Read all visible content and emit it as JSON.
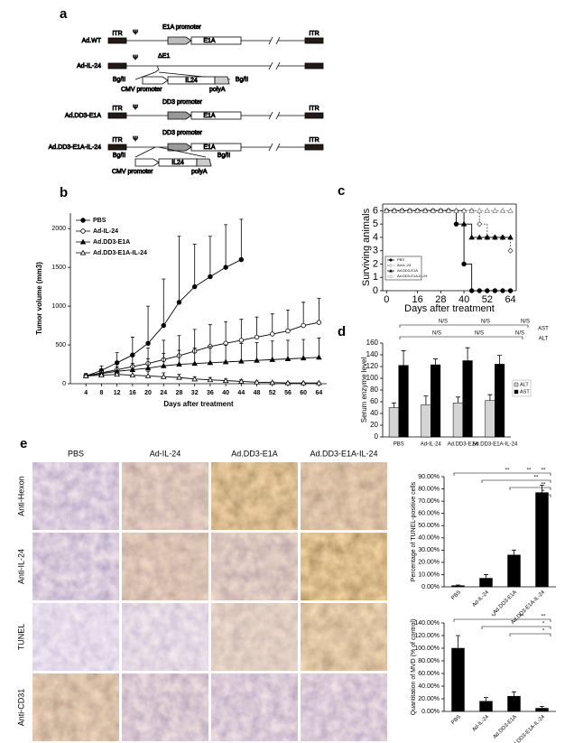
{
  "figure": {
    "labels": [
      "a",
      "b",
      "c",
      "d",
      "e"
    ]
  },
  "diagram": {
    "constructs": [
      "Ad.WT",
      "Ad-IL-24",
      "Ad.DD3-E1A",
      "Ad.DD3-E1A-IL-24"
    ],
    "parts": {
      "itr": "ITR",
      "psi": "Ψ",
      "e1a_promoter": "E1A promoter",
      "e1a": "E1A",
      "delta_e1": "ΔE1",
      "bgl": "Bg/II",
      "il24": "IL24",
      "cmv": "CMV promoter",
      "polya": "polyA",
      "dd3": "DD3 promoter"
    }
  },
  "chart_data": [
    {
      "type": "line",
      "xlabel": "Days after treatment",
      "ylabel": "Tumor volume (mm3)",
      "x": [
        4,
        8,
        12,
        16,
        20,
        24,
        28,
        32,
        36,
        40,
        44,
        48,
        52,
        56,
        60,
        64
      ],
      "xlim": [
        0,
        66
      ],
      "xticks": [
        4,
        8,
        12,
        16,
        20,
        24,
        28,
        32,
        36,
        40,
        44,
        48,
        52,
        56,
        60,
        64
      ],
      "ylim": [
        0,
        2200
      ],
      "yticks": [
        0,
        500,
        1000,
        1500,
        2000
      ],
      "legend": "upper left",
      "series": [
        {
          "name": "PBS",
          "color": "#000000",
          "marker": "circle",
          "values": [
            100,
            170,
            270,
            370,
            520,
            750,
            1050,
            1250,
            1380,
            1500,
            1600,
            null,
            null,
            null,
            null,
            null
          ],
          "errors": [
            20,
            60,
            130,
            230,
            480,
            600,
            850,
            550,
            520,
            550,
            520,
            null,
            null,
            null,
            null,
            null
          ]
        },
        {
          "name": "Ad-IL-24",
          "color": "#000000",
          "marker": "circle-open",
          "values": [
            100,
            140,
            180,
            220,
            260,
            310,
            360,
            420,
            480,
            520,
            560,
            600,
            640,
            680,
            750,
            790
          ],
          "errors": [
            30,
            50,
            100,
            150,
            200,
            250,
            260,
            280,
            280,
            280,
            270,
            260,
            260,
            270,
            300,
            310
          ]
        },
        {
          "name": "Ad.DD3-E1A",
          "color": "#000000",
          "marker": "triangle",
          "values": [
            100,
            130,
            160,
            180,
            200,
            230,
            250,
            260,
            270,
            280,
            290,
            300,
            310,
            320,
            330,
            340
          ],
          "errors": [
            20,
            40,
            60,
            80,
            120,
            160,
            180,
            200,
            210,
            220,
            230,
            230,
            240,
            240,
            240,
            250
          ]
        },
        {
          "name": "Ad.DD3-E1A-IL-24",
          "color": "#000000",
          "marker": "triangle-open",
          "values": [
            100,
            110,
            120,
            110,
            100,
            90,
            80,
            60,
            50,
            40,
            30,
            20,
            15,
            10,
            10,
            10
          ],
          "errors": [
            20,
            30,
            40,
            50,
            60,
            50,
            40,
            30,
            30,
            20,
            20,
            15,
            10,
            10,
            10,
            10
          ]
        }
      ]
    },
    {
      "type": "line",
      "drawstyle": "steps",
      "xlabel": "Days after treatment",
      "ylabel": "Surviving animals",
      "x": [
        0,
        4,
        8,
        12,
        16,
        20,
        24,
        28,
        32,
        36,
        40,
        44,
        48,
        52,
        56,
        60,
        64
      ],
      "xlim": [
        -2,
        67
      ],
      "xticks": [
        0,
        16,
        28,
        40,
        52,
        64
      ],
      "ylim": [
        0,
        6.5
      ],
      "yticks": [
        0,
        1,
        2,
        3,
        4,
        5,
        6
      ],
      "legend": "lower left",
      "series": [
        {
          "name": "PBS",
          "color": "#000000",
          "marker": "circle",
          "values": [
            6,
            6,
            6,
            6,
            6,
            6,
            6,
            6,
            6,
            5,
            2,
            0,
            0,
            0,
            0,
            0,
            0
          ]
        },
        {
          "name": "Ad-IL-24",
          "color": "#555555",
          "marker": "diamond-open",
          "dash": true,
          "values": [
            6,
            6,
            6,
            6,
            6,
            6,
            6,
            6,
            6,
            6,
            6,
            6,
            5,
            4,
            4,
            4,
            3
          ]
        },
        {
          "name": "Ad.DD3-E1A",
          "color": "#000000",
          "marker": "triangle",
          "values": [
            6,
            6,
            6,
            6,
            6,
            6,
            6,
            6,
            6,
            6,
            5,
            4,
            4,
            4,
            4,
            4,
            4
          ]
        },
        {
          "name": "Ad.DD3-E1A-IL-24",
          "color": "#888888",
          "marker": "triangle-open",
          "dash": true,
          "values": [
            6,
            6,
            6,
            6,
            6,
            6,
            6,
            6,
            6,
            6,
            6,
            6,
            6,
            6,
            6,
            6,
            6
          ]
        }
      ]
    },
    {
      "type": "bar",
      "ylabel": "Serum enzyme level",
      "categories": [
        "PBS",
        "Ad-IL-24",
        "Ad.DD3-E1A",
        "Ad.DD3-E1A-IL-24"
      ],
      "ylim": [
        0,
        160
      ],
      "yticks": [
        0,
        20,
        40,
        60,
        80,
        100,
        120,
        140,
        160
      ],
      "legend": "center right",
      "series": [
        {
          "name": "ALT",
          "color": "#d4d4d4",
          "values": [
            50,
            55,
            58,
            62
          ],
          "errors": [
            8,
            15,
            10,
            10
          ]
        },
        {
          "name": "AST",
          "color": "#000000",
          "values": [
            122,
            123,
            130,
            124
          ],
          "errors": [
            25,
            10,
            22,
            15
          ]
        }
      ],
      "annotations": [
        "N/S",
        "N/S",
        "N/S",
        "N/S",
        "N/S",
        "N/S",
        "AST",
        "ALT"
      ]
    },
    {
      "type": "bar",
      "ylabel": "Percentage of TUNEL-positive cells",
      "categories": [
        "PBS",
        "Ad-IL-24",
        "Ad.DD3-E1A",
        "Ad.DD3-E1A-IL-24"
      ],
      "values": [
        1,
        7,
        26,
        77
      ],
      "errors": [
        0.5,
        3,
        4,
        6
      ],
      "color": "#000000",
      "ylim": [
        0,
        90
      ],
      "yticks": [
        {
          "value": 0,
          "label": "0.00%"
        },
        {
          "value": 10,
          "label": "10.00%"
        },
        {
          "value": 20,
          "label": "20.00%"
        },
        {
          "value": 30,
          "label": "30.00%"
        },
        {
          "value": 40,
          "label": "40.00%"
        },
        {
          "value": 50,
          "label": "50.00%"
        },
        {
          "value": 60,
          "label": "60.00%"
        },
        {
          "value": 70,
          "label": "70.00%"
        },
        {
          "value": 80,
          "label": "80.00%"
        },
        {
          "value": 90,
          "label": "90.00%"
        }
      ],
      "annotations": [
        "**",
        "**",
        "**",
        "**",
        "**",
        "*"
      ]
    },
    {
      "type": "bar",
      "ylabel": "Quantitation of MVD (% of control)",
      "categories": [
        "PBS",
        "Ad-IL-24",
        "Ad.DD3-E1A",
        "Ad.DD3-E1A-IL-24"
      ],
      "values": [
        100,
        16,
        24,
        5
      ],
      "errors": [
        20,
        6,
        7,
        3
      ],
      "color": "#000000",
      "ylim": [
        0,
        140
      ],
      "yticks": [
        {
          "value": 0,
          "label": "0.00%"
        },
        {
          "value": 20,
          "label": "20.00%"
        },
        {
          "value": 40,
          "label": "40.00%"
        },
        {
          "value": 60,
          "label": "60.00%"
        },
        {
          "value": 80,
          "label": "80.00%"
        },
        {
          "value": 100,
          "label": "100.00%"
        },
        {
          "value": 120,
          "label": "120.00%"
        },
        {
          "value": 140,
          "label": "140.00%"
        }
      ],
      "annotations": [
        "**",
        "**",
        "**",
        "*",
        "*"
      ]
    }
  ],
  "micrographs": {
    "columns": [
      "PBS",
      "Ad-IL-24",
      "Ad.DD3-E1A",
      "Ad.DD3-E1A-IL-24"
    ],
    "rows": [
      "Anti-Hexon",
      "Anti-IL-24",
      "TUNEL",
      "Anti-CD31"
    ]
  }
}
